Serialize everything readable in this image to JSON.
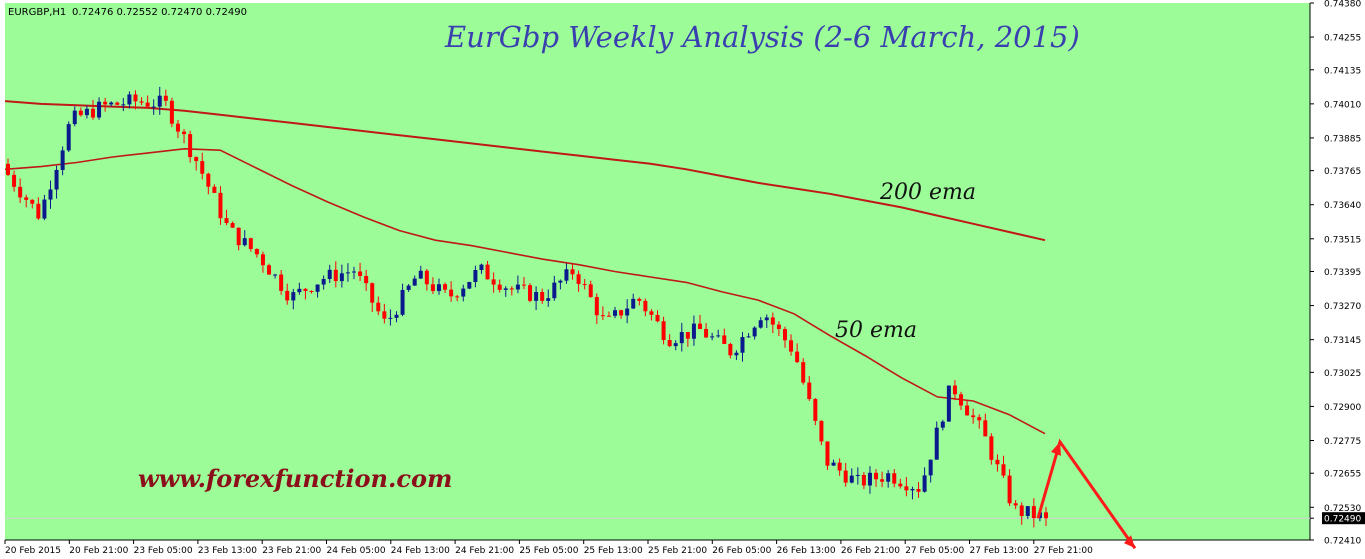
{
  "header": {
    "symbol": "EURGBP,H1",
    "ohlc": "0.72476 0.72552 0.72470 0.72490"
  },
  "overlay": {
    "title": "EurGbp Weekly Analysis (2-6 March, 2015)",
    "website": "www.forexfunction.com"
  },
  "colors": {
    "background": "#9cfc98",
    "bull": "#0a1a8c",
    "bear": "#ff0000",
    "ema": "#c01818",
    "arrow": "#ff1a1a",
    "price_marker": "#000000"
  },
  "chart_data": {
    "type": "candlestick",
    "title": "EurGbp Weekly Analysis (2-6 March, 2015)",
    "symbol": "EURGBP",
    "timeframe": "H1",
    "current_price": 0.7249,
    "ylim": [
      0.7241,
      0.7438
    ],
    "y_ticks": [
      "0.74380",
      "0.74255",
      "0.74135",
      "0.74010",
      "0.73885",
      "0.73765",
      "0.73640",
      "0.73515",
      "0.73395",
      "0.73270",
      "0.73145",
      "0.73025",
      "0.72900",
      "0.72775",
      "0.72655",
      "0.72530",
      "0.72490",
      "0.72410"
    ],
    "x_ticks": [
      "20 Feb 2015",
      "20 Feb 21:00",
      "23 Feb 05:00",
      "23 Feb 13:00",
      "23 Feb 21:00",
      "24 Feb 05:00",
      "24 Feb 13:00",
      "24 Feb 21:00",
      "25 Feb 05:00",
      "25 Feb 13:00",
      "25 Feb 21:00",
      "26 Feb 05:00",
      "26 Feb 13:00",
      "26 Feb 21:00",
      "27 Feb 05:00",
      "27 Feb 13:00",
      "27 Feb 21:00"
    ],
    "grid": false,
    "series": [
      {
        "name": "200 ema",
        "values": [
          0.7402,
          0.7401,
          0.74005,
          0.74,
          0.73995,
          0.73985,
          0.7397,
          0.73955,
          0.7394,
          0.73925,
          0.7391,
          0.73895,
          0.7388,
          0.73865,
          0.7385,
          0.73835,
          0.7382,
          0.73805,
          0.7379,
          0.7377,
          0.73745,
          0.7372,
          0.737,
          0.7368,
          0.73655,
          0.7363,
          0.736,
          0.7357,
          0.7354,
          0.7351
        ]
      },
      {
        "name": "50 ema",
        "values": [
          0.7377,
          0.7378,
          0.73795,
          0.73815,
          0.7383,
          0.73845,
          0.7384,
          0.73775,
          0.7371,
          0.7365,
          0.73595,
          0.73545,
          0.7351,
          0.7349,
          0.73465,
          0.7344,
          0.7342,
          0.73395,
          0.73375,
          0.73355,
          0.7332,
          0.7329,
          0.7324,
          0.7316,
          0.73085,
          0.73005,
          0.72935,
          0.7292,
          0.7287,
          0.728
        ]
      }
    ],
    "candle_model": {
      "count": 172,
      "waypoints": [
        0.7375,
        0.736,
        0.7395,
        0.74,
        0.7402,
        0.7401,
        0.738,
        0.7355,
        0.7345,
        0.733,
        0.7337,
        0.734,
        0.732,
        0.7338,
        0.733,
        0.734,
        0.7333,
        0.733,
        0.734,
        0.732,
        0.733,
        0.7315,
        0.7318,
        0.731,
        0.7325,
        0.731,
        0.727,
        0.7262,
        0.7265,
        0.726,
        0.7298,
        0.728,
        0.7252,
        0.7249
      ],
      "volatility": 0.0006
    },
    "projection": [
      {
        "label": "",
        "value": 0.7249
      },
      {
        "label": "",
        "value": 0.7277
      },
      {
        "label": "",
        "value": 0.7238
      }
    ],
    "annotations": [
      "200 ema",
      "50 ema",
      "www.forexfunction.com"
    ]
  }
}
